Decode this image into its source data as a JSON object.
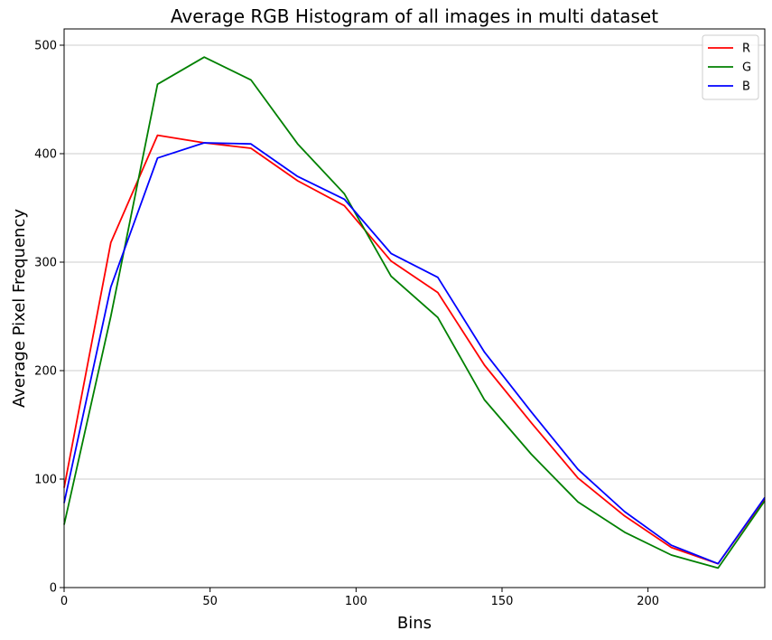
{
  "chart_data": {
    "type": "line",
    "title": "Average RGB Histogram of all images in multi dataset",
    "xlabel": "Bins",
    "ylabel": "Average Pixel Frequency",
    "xlim": [
      0,
      240
    ],
    "ylim": [
      0,
      515
    ],
    "xticks": [
      0,
      50,
      100,
      150,
      200
    ],
    "yticks": [
      0,
      100,
      200,
      300,
      400,
      500
    ],
    "grid": "horizontal",
    "legend_position": "top-right",
    "x": [
      0,
      16,
      32,
      48,
      64,
      80,
      96,
      112,
      128,
      144,
      160,
      176,
      192,
      208,
      224,
      240
    ],
    "series": [
      {
        "name": "R",
        "color": "#ff0000",
        "values": [
          92,
          318,
          417,
          410,
          405,
          375,
          352,
          301,
          272,
          205,
          152,
          101,
          66,
          37,
          22,
          82
        ]
      },
      {
        "name": "G",
        "color": "#008000",
        "values": [
          58,
          250,
          464,
          489,
          468,
          409,
          363,
          287,
          249,
          173,
          123,
          79,
          51,
          30,
          18,
          80
        ]
      },
      {
        "name": "B",
        "color": "#0000ff",
        "values": [
          78,
          277,
          396,
          410,
          409,
          379,
          358,
          308,
          286,
          217,
          162,
          109,
          70,
          39,
          22,
          83
        ]
      }
    ]
  }
}
